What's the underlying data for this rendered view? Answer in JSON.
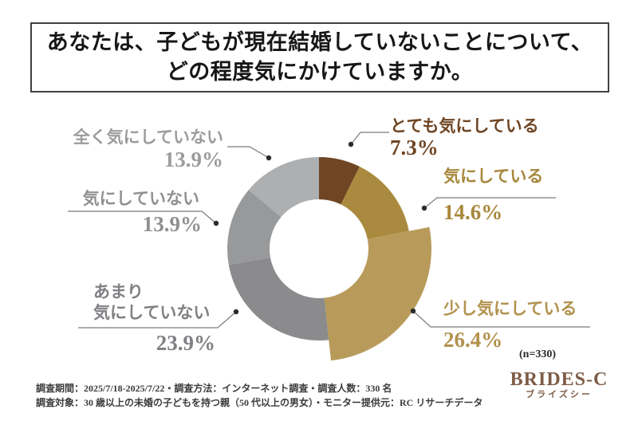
{
  "title": {
    "line1": "あなたは、子どもが現在結婚していないことについて、",
    "line2": "どの程度気にかけていますか。"
  },
  "chart_data": {
    "type": "pie",
    "subtype": "donut",
    "title": "あなたは、子どもが現在結婚していないことについて、どの程度気にかけていますか。",
    "sample_size_label": "(n=330)",
    "categories": [
      "とても気にしている",
      "気にしている",
      "少し気にしている",
      "あまり気にしていない",
      "気にしていない",
      "全く気にしていない"
    ],
    "values": [
      7.3,
      14.6,
      26.4,
      23.9,
      13.9,
      13.9
    ],
    "colors": [
      "#6f4523",
      "#aa8a3e",
      "#b89b5a",
      "#8b8b8d",
      "#98999b",
      "#aeafb1"
    ],
    "start_angle_deg": 0,
    "direction": "clockwise",
    "highlight_index": 2,
    "legend": "none"
  },
  "labels": {
    "very": {
      "text": "とても気にしている",
      "pct": "7.3%",
      "color": "#6f4523"
    },
    "somewhat": {
      "text": "気にしている",
      "pct": "14.6%",
      "color": "#a8873c"
    },
    "slightly": {
      "text": "少し気にしている",
      "pct": "26.4%",
      "color": "#b2914d"
    },
    "not_much": {
      "line1": "あまり",
      "line2": "気にしていない",
      "pct": "23.9%",
      "color": "#7f8083"
    },
    "not": {
      "text": "気にしていない",
      "pct": "13.9%",
      "color": "#8f9092"
    },
    "not_at_all": {
      "text": "全く気にしていない",
      "pct": "13.9%",
      "color": "#9b9c9e"
    }
  },
  "footer": {
    "line1": "調査期間：2025/7/18-2025/7/22・調査方法：インターネット調査・調査人数：330 名",
    "line2": "調査対象：30 歳以上の未婚の子どもを持つ親（50 代以上の男女）・モニター提供元：RC リサーチデータ"
  },
  "logo": {
    "name": "BRIDES-C",
    "reading": "ブライズシー",
    "color": "#7d5c46"
  }
}
